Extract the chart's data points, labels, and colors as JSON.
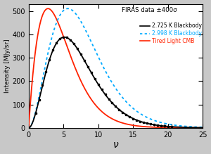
{
  "title": "FIRAS data ±400σ",
  "xlabel": "ν",
  "ylabel": "Intensity [MJy/sr]",
  "xlim": [
    0,
    25
  ],
  "ylim": [
    0,
    530
  ],
  "yticks": [
    0,
    100,
    200,
    300,
    400,
    500
  ],
  "xticks": [
    0,
    5,
    10,
    15,
    20,
    25
  ],
  "T_blackbody": 2.725,
  "T_blue": 2.998,
  "bg_color": "#c8c8c8",
  "plot_bg_color": "#ffffff",
  "line_blackbody_color": "#000000",
  "line_tired_color": "#ff2200",
  "line_blue_color": "#00aaff",
  "data_color": "#000000",
  "legend_title_color": "#000000",
  "legend_bb_color": "#000000",
  "legend_blue_color": "#00aaff",
  "legend_tired_color": "#ff2200",
  "scale_blackbody": 388,
  "scale_blue": 510,
  "scale_tired": 510,
  "c_const": 1.5,
  "tired_T": 2.725,
  "tired_extra_power": 1.0,
  "tired_scale_factor": 510
}
